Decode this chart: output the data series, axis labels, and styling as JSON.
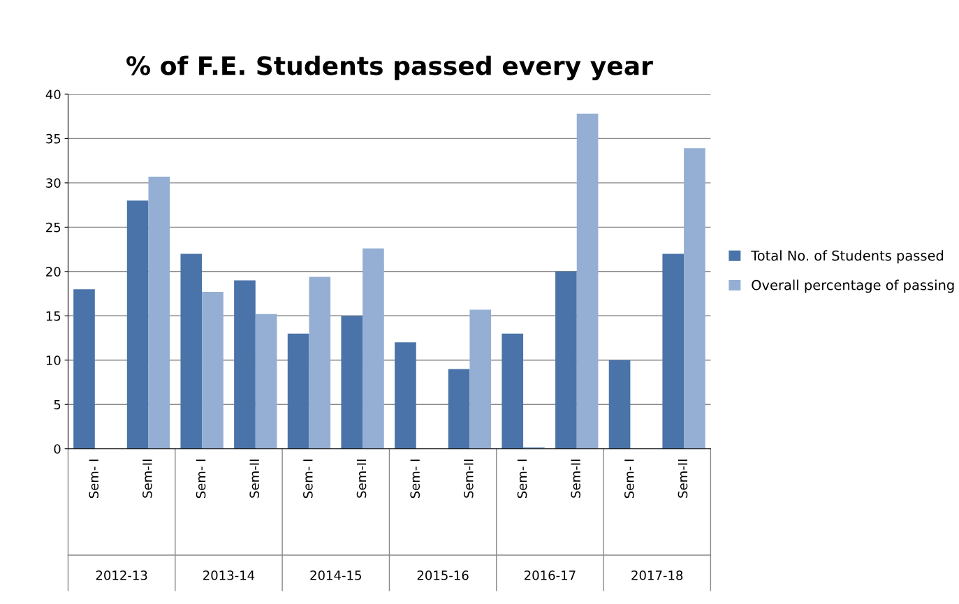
{
  "chart_data": {
    "type": "bar",
    "title": "% of F.E. Students passed every year",
    "categories": [
      "Sem- I",
      "Sem-II",
      "Sem- I",
      "Sem-II",
      "Sem- I",
      "Sem-II",
      "Sem- I",
      "Sem-II",
      "Sem- I",
      "Sem-II",
      "Sem- I",
      "Sem-II"
    ],
    "series": [
      {
        "name": "Total No. of Students passed",
        "color": "#4a74a9",
        "values": [
          18,
          28,
          22,
          19,
          13,
          15,
          12,
          9,
          13,
          20,
          10,
          22
        ]
      },
      {
        "name": "Overall percentage of passing",
        "color": "#95aed4",
        "values": [
          null,
          30.7,
          17.7,
          15.2,
          19.4,
          22.6,
          null,
          15.7,
          0.2,
          37.8,
          null,
          33.9
        ]
      }
    ],
    "annotations": [
      "2012-13",
      "2013-14",
      "2014-15",
      "2015-16",
      "2016-17",
      "2017-18"
    ],
    "ylim": [
      0,
      40
    ],
    "yticks": [
      0,
      5,
      10,
      15,
      20,
      25,
      30,
      35,
      40
    ],
    "grid": "y",
    "legend": "right"
  }
}
